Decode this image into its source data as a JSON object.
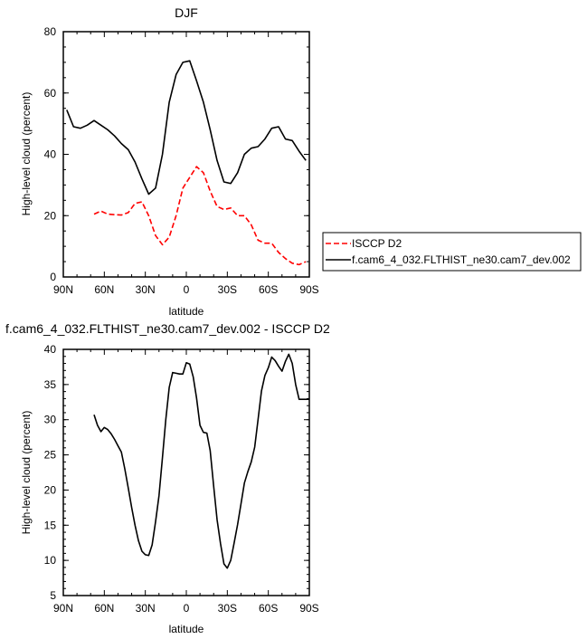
{
  "chart_data": [
    {
      "type": "line",
      "title": "DJF",
      "xlabel": "latitude",
      "ylabel": "High-level cloud (percent)",
      "xlim": [
        90,
        -90
      ],
      "ylim": [
        0,
        80
      ],
      "x_ticks": [
        90,
        60,
        30,
        0,
        -30,
        -60,
        -90
      ],
      "x_tick_labels": [
        "90N",
        "60N",
        "30N",
        "0",
        "30S",
        "60S",
        "90S"
      ],
      "y_ticks": [
        0,
        20,
        40,
        60,
        80
      ],
      "y_tick_labels": [
        "0",
        "20",
        "40",
        "60",
        "80"
      ],
      "grid": false,
      "legend_position": "right",
      "series": [
        {
          "name": "ISCCP D2",
          "color": "#ff0000",
          "dash": true,
          "x": [
            67.5,
            62.5,
            57.5,
            52.5,
            47.5,
            42.5,
            37.5,
            32.5,
            27.5,
            22.5,
            17.5,
            12.5,
            7.5,
            2.5,
            -2.5,
            -7.5,
            -12.5,
            -17.5,
            -22.5,
            -27.5,
            -32.5,
            -37.5,
            -42.5,
            -47.5,
            -52.5,
            -57.5,
            -62.5,
            -67.5,
            -72.5,
            -77.5,
            -82.5,
            -87.5
          ],
          "y": [
            20.5,
            21.5,
            20.5,
            20.3,
            20.2,
            21.0,
            24.0,
            24.5,
            20.0,
            13.5,
            10.5,
            13.0,
            20.0,
            29.0,
            32.5,
            36.0,
            34.0,
            28.0,
            23.0,
            22.0,
            22.5,
            20.0,
            20.0,
            17.0,
            12.0,
            11.0,
            11.0,
            8.0,
            6.0,
            4.5,
            4.0,
            5.0
          ]
        },
        {
          "name": "f.cam6_4_032.FLTHIST_ne30.cam7_dev.002",
          "color": "#000000",
          "dash": false,
          "x": [
            87.5,
            82.5,
            77.5,
            72.5,
            67.5,
            62.5,
            57.5,
            52.5,
            47.5,
            42.5,
            37.5,
            32.5,
            27.5,
            22.5,
            17.5,
            12.5,
            7.5,
            2.5,
            -2.5,
            -7.5,
            -12.5,
            -17.5,
            -22.5,
            -27.5,
            -32.5,
            -37.5,
            -42.5,
            -47.5,
            -52.5,
            -57.5,
            -62.5,
            -67.5,
            -72.5,
            -77.5,
            -82.5,
            -87.5
          ],
          "y": [
            54.5,
            49.0,
            48.5,
            49.5,
            51.0,
            49.5,
            48.0,
            46.0,
            43.5,
            41.5,
            37.5,
            32.0,
            27.0,
            29.0,
            40.0,
            57.0,
            66.0,
            70.0,
            70.5,
            64.0,
            57.0,
            48.0,
            38.0,
            31.0,
            30.5,
            34.0,
            40.0,
            42.0,
            42.5,
            45.0,
            48.5,
            49.0,
            45.0,
            44.5,
            41.0,
            38.0
          ]
        }
      ]
    },
    {
      "type": "line",
      "title": "f.cam6_4_032.FLTHIST_ne30.cam7_dev.002 - ISCCP D2",
      "xlabel": "latitude",
      "ylabel": "High-level cloud (percent)",
      "xlim": [
        90,
        -90
      ],
      "ylim": [
        5,
        40
      ],
      "x_ticks": [
        90,
        60,
        30,
        0,
        -30,
        -60,
        -90
      ],
      "x_tick_labels": [
        "90N",
        "60N",
        "30N",
        "0",
        "30S",
        "60S",
        "90S"
      ],
      "y_ticks": [
        5,
        10,
        15,
        20,
        25,
        30,
        35,
        40
      ],
      "y_tick_labels": [
        "5",
        "10",
        "15",
        "20",
        "25",
        "30",
        "35",
        "40"
      ],
      "grid": false,
      "series": [
        {
          "color": "#000000",
          "dash": false,
          "x": [
            67.5,
            65,
            62.5,
            60,
            57.5,
            55,
            52.5,
            50,
            47.5,
            45,
            42.5,
            40,
            37.5,
            35,
            32.5,
            30,
            27.5,
            25,
            22.5,
            20,
            17.5,
            15,
            12.5,
            10,
            7.5,
            5,
            2.5,
            0,
            -2.5,
            -5,
            -7.5,
            -10,
            -12.5,
            -15,
            -17.5,
            -20,
            -22.5,
            -25,
            -27.5,
            -30,
            -32.5,
            -35,
            -37.5,
            -40,
            -42.5,
            -45,
            -47.5,
            -50,
            -52.5,
            -55,
            -57.5,
            -60,
            -62.5,
            -65,
            -67.5,
            -70,
            -72.5,
            -75,
            -77.5,
            -80,
            -82.5,
            -85,
            -87.5,
            -90
          ],
          "y": [
            30.7,
            29.2,
            28.3,
            28.9,
            28.6,
            28.0,
            27.2,
            26.3,
            25.4,
            23.0,
            20.3,
            17.5,
            15.0,
            12.8,
            11.3,
            10.8,
            10.7,
            12.2,
            15.5,
            19.2,
            24.6,
            30.0,
            34.6,
            36.7,
            36.6,
            36.5,
            36.5,
            38.1,
            37.9,
            36.1,
            33.1,
            29.2,
            28.2,
            28.1,
            25.6,
            20.6,
            15.8,
            12.4,
            9.5,
            8.9,
            10.0,
            12.5,
            15.1,
            18.0,
            21.0,
            22.6,
            24.0,
            26.1,
            30.0,
            34.1,
            36.3,
            37.4,
            38.9,
            38.4,
            37.6,
            36.9,
            38.3,
            39.3,
            38.0,
            35.0,
            32.9,
            32.9,
            32.9,
            32.9
          ]
        }
      ]
    }
  ]
}
